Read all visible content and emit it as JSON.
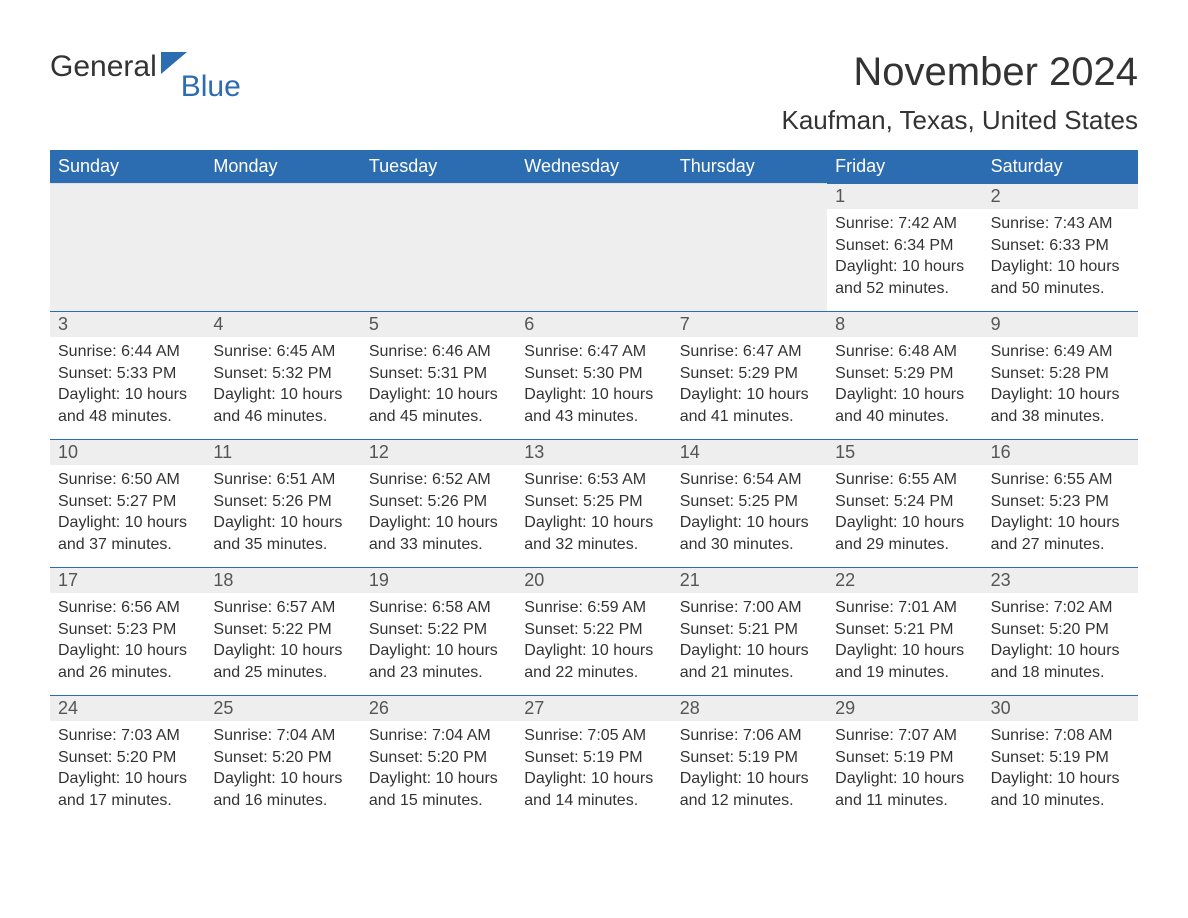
{
  "logo": {
    "text1": "General",
    "text2": "Blue",
    "icon_color": "#2c6cb0"
  },
  "title": "November 2024",
  "location": "Kaufman, Texas, United States",
  "colors": {
    "header_bg": "#2c6cb0",
    "header_text": "#ffffff",
    "daynum_bg": "#eeeeee",
    "border": "#2c6cb0",
    "body_text": "#333333"
  },
  "day_headers": [
    "Sunday",
    "Monday",
    "Tuesday",
    "Wednesday",
    "Thursday",
    "Friday",
    "Saturday"
  ],
  "leading_empty": 5,
  "days": [
    {
      "n": 1,
      "sunrise": "7:42 AM",
      "sunset": "6:34 PM",
      "daylight": "10 hours and 52 minutes."
    },
    {
      "n": 2,
      "sunrise": "7:43 AM",
      "sunset": "6:33 PM",
      "daylight": "10 hours and 50 minutes."
    },
    {
      "n": 3,
      "sunrise": "6:44 AM",
      "sunset": "5:33 PM",
      "daylight": "10 hours and 48 minutes."
    },
    {
      "n": 4,
      "sunrise": "6:45 AM",
      "sunset": "5:32 PM",
      "daylight": "10 hours and 46 minutes."
    },
    {
      "n": 5,
      "sunrise": "6:46 AM",
      "sunset": "5:31 PM",
      "daylight": "10 hours and 45 minutes."
    },
    {
      "n": 6,
      "sunrise": "6:47 AM",
      "sunset": "5:30 PM",
      "daylight": "10 hours and 43 minutes."
    },
    {
      "n": 7,
      "sunrise": "6:47 AM",
      "sunset": "5:29 PM",
      "daylight": "10 hours and 41 minutes."
    },
    {
      "n": 8,
      "sunrise": "6:48 AM",
      "sunset": "5:29 PM",
      "daylight": "10 hours and 40 minutes."
    },
    {
      "n": 9,
      "sunrise": "6:49 AM",
      "sunset": "5:28 PM",
      "daylight": "10 hours and 38 minutes."
    },
    {
      "n": 10,
      "sunrise": "6:50 AM",
      "sunset": "5:27 PM",
      "daylight": "10 hours and 37 minutes."
    },
    {
      "n": 11,
      "sunrise": "6:51 AM",
      "sunset": "5:26 PM",
      "daylight": "10 hours and 35 minutes."
    },
    {
      "n": 12,
      "sunrise": "6:52 AM",
      "sunset": "5:26 PM",
      "daylight": "10 hours and 33 minutes."
    },
    {
      "n": 13,
      "sunrise": "6:53 AM",
      "sunset": "5:25 PM",
      "daylight": "10 hours and 32 minutes."
    },
    {
      "n": 14,
      "sunrise": "6:54 AM",
      "sunset": "5:25 PM",
      "daylight": "10 hours and 30 minutes."
    },
    {
      "n": 15,
      "sunrise": "6:55 AM",
      "sunset": "5:24 PM",
      "daylight": "10 hours and 29 minutes."
    },
    {
      "n": 16,
      "sunrise": "6:55 AM",
      "sunset": "5:23 PM",
      "daylight": "10 hours and 27 minutes."
    },
    {
      "n": 17,
      "sunrise": "6:56 AM",
      "sunset": "5:23 PM",
      "daylight": "10 hours and 26 minutes."
    },
    {
      "n": 18,
      "sunrise": "6:57 AM",
      "sunset": "5:22 PM",
      "daylight": "10 hours and 25 minutes."
    },
    {
      "n": 19,
      "sunrise": "6:58 AM",
      "sunset": "5:22 PM",
      "daylight": "10 hours and 23 minutes."
    },
    {
      "n": 20,
      "sunrise": "6:59 AM",
      "sunset": "5:22 PM",
      "daylight": "10 hours and 22 minutes."
    },
    {
      "n": 21,
      "sunrise": "7:00 AM",
      "sunset": "5:21 PM",
      "daylight": "10 hours and 21 minutes."
    },
    {
      "n": 22,
      "sunrise": "7:01 AM",
      "sunset": "5:21 PM",
      "daylight": "10 hours and 19 minutes."
    },
    {
      "n": 23,
      "sunrise": "7:02 AM",
      "sunset": "5:20 PM",
      "daylight": "10 hours and 18 minutes."
    },
    {
      "n": 24,
      "sunrise": "7:03 AM",
      "sunset": "5:20 PM",
      "daylight": "10 hours and 17 minutes."
    },
    {
      "n": 25,
      "sunrise": "7:04 AM",
      "sunset": "5:20 PM",
      "daylight": "10 hours and 16 minutes."
    },
    {
      "n": 26,
      "sunrise": "7:04 AM",
      "sunset": "5:20 PM",
      "daylight": "10 hours and 15 minutes."
    },
    {
      "n": 27,
      "sunrise": "7:05 AM",
      "sunset": "5:19 PM",
      "daylight": "10 hours and 14 minutes."
    },
    {
      "n": 28,
      "sunrise": "7:06 AM",
      "sunset": "5:19 PM",
      "daylight": "10 hours and 12 minutes."
    },
    {
      "n": 29,
      "sunrise": "7:07 AM",
      "sunset": "5:19 PM",
      "daylight": "10 hours and 11 minutes."
    },
    {
      "n": 30,
      "sunrise": "7:08 AM",
      "sunset": "5:19 PM",
      "daylight": "10 hours and 10 minutes."
    }
  ],
  "labels": {
    "sunrise": "Sunrise: ",
    "sunset": "Sunset: ",
    "daylight": "Daylight: "
  }
}
